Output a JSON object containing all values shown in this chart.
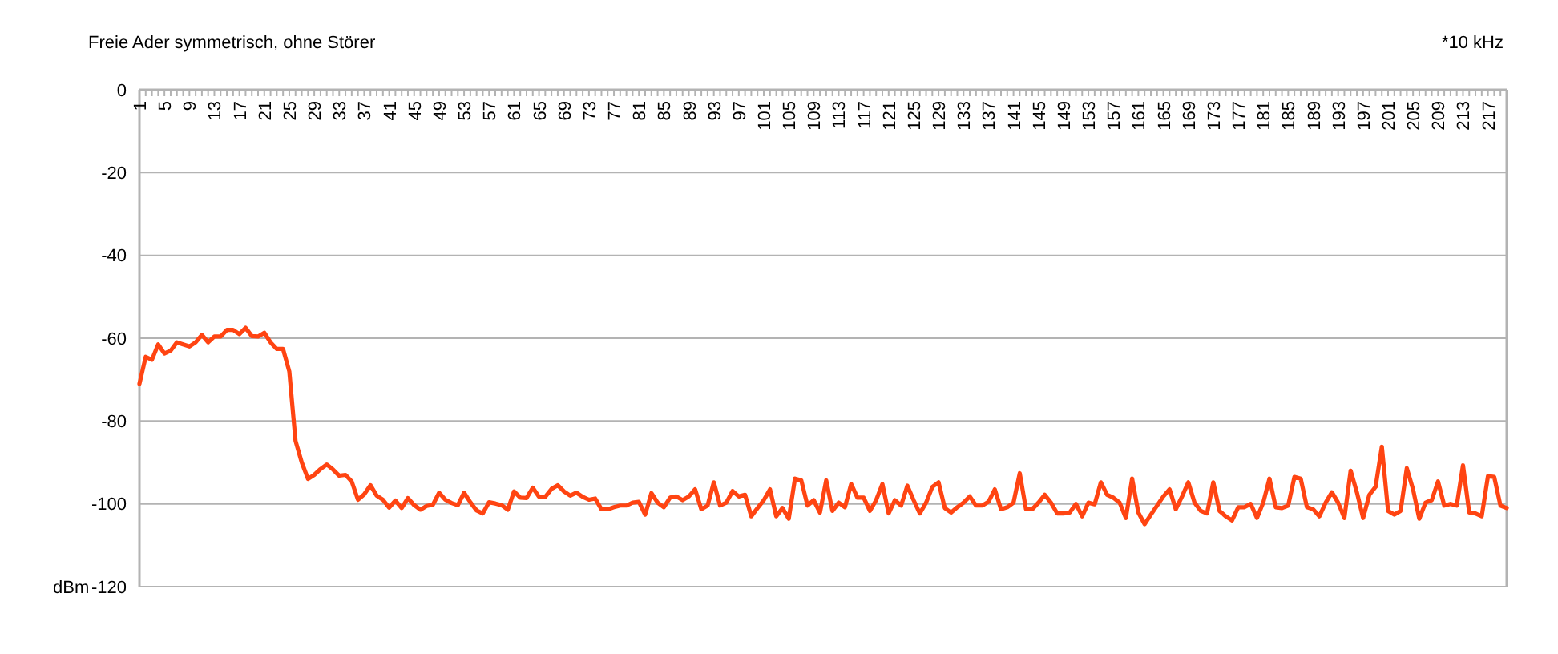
{
  "chart_data": {
    "type": "line",
    "title": "Freie Ader symmetrisch, ohne Störer",
    "xlabel": "*10 kHz",
    "ylabel": "dBm",
    "categories": [
      "1",
      null,
      null,
      null,
      "5",
      null,
      null,
      null,
      "9",
      null,
      null,
      null,
      "13",
      null,
      null,
      null,
      "17",
      null,
      null,
      null,
      "21",
      null,
      null,
      null,
      "25",
      null,
      null,
      null,
      "29",
      null,
      null,
      null,
      "33",
      null,
      null,
      null,
      "37",
      null,
      null,
      null,
      "41",
      null,
      null,
      null,
      "45",
      null,
      null,
      null,
      "49",
      null,
      null,
      null,
      "53",
      null,
      null,
      null,
      "57",
      null,
      null,
      null,
      "61",
      null,
      null,
      null,
      "65",
      null,
      null,
      null,
      "69",
      null,
      null,
      null,
      "73",
      null,
      null,
      null,
      "77",
      null,
      null,
      null,
      "81",
      null,
      null,
      null,
      "85",
      null,
      null,
      null,
      "89",
      null,
      null,
      null,
      "93",
      null,
      null,
      null,
      "97",
      null,
      null,
      null,
      "101",
      null,
      null,
      null,
      "105",
      null,
      null,
      null,
      "109",
      null,
      null,
      null,
      "113",
      null,
      null,
      null,
      "117",
      null,
      null,
      null,
      "121",
      null,
      null,
      null,
      "125",
      null,
      null,
      null,
      "129",
      null,
      null,
      null,
      "133",
      null,
      null,
      null,
      "137",
      null,
      null,
      null,
      "141",
      null,
      null,
      null,
      "145",
      null,
      null,
      null,
      "149",
      null,
      null,
      null,
      "153",
      null,
      null,
      null,
      "157",
      null,
      null,
      null,
      "161",
      null,
      null,
      null,
      "165",
      null,
      null,
      null,
      "169",
      null,
      null,
      null,
      "173",
      null,
      null,
      null,
      "177",
      null,
      null,
      null,
      "181",
      null,
      null,
      null,
      "185",
      null,
      null,
      null,
      "189",
      null,
      null,
      null,
      "193",
      null,
      null,
      null,
      "197",
      null,
      null,
      null,
      "201",
      null,
      null,
      null,
      "205",
      null,
      null,
      null,
      "209",
      null,
      null,
      null,
      "213",
      null,
      null,
      null,
      "217",
      null,
      null,
      null
    ],
    "series": [
      {
        "color": "#ff4412",
        "values": [
          -71,
          -64.5,
          -65.2,
          -61.5,
          -63.7,
          -63,
          -61,
          -61.5,
          -62,
          -61,
          -59.2,
          -61,
          -59.6,
          -59.6,
          -58,
          -58,
          -59,
          -57.5,
          -59.5,
          -59.6,
          -58.7,
          -61,
          -62.6,
          -62.6,
          -68,
          -84.8,
          -90,
          -94,
          -93,
          -91.6,
          -90.5,
          -91.7,
          -93.2,
          -93,
          -94.6,
          -99,
          -97.7,
          -95.5,
          -98,
          -99,
          -100.9,
          -99.2,
          -101,
          -98.6,
          -100.3,
          -101.4,
          -100.5,
          -100.2,
          -97.3,
          -99,
          -99.8,
          -100.3,
          -97.3,
          -99.6,
          -101.6,
          -102.3,
          -99.6,
          -99.9,
          -100.3,
          -101.4,
          -97,
          -98.5,
          -98.6,
          -96.1,
          -98.3,
          -98.3,
          -96.4,
          -95.5,
          -97,
          -98,
          -97.3,
          -98.3,
          -99,
          -98.7,
          -101.3,
          -101.3,
          -100.8,
          -100.4,
          -100.4,
          -99.7,
          -99.5,
          -102.6,
          -97.4,
          -99.7,
          -100.8,
          -98.5,
          -98.2,
          -99.1,
          -98.2,
          -96.5,
          -101.3,
          -100.4,
          -94.8,
          -100.4,
          -99.7,
          -96.9,
          -98.2,
          -97.8,
          -103,
          -101,
          -99.1,
          -96.5,
          -103,
          -101,
          -103.6,
          -93.9,
          -94.3,
          -100.4,
          -99.1,
          -102.1,
          -94.3,
          -101.7,
          -99.7,
          -100.8,
          -95.2,
          -98.5,
          -98.5,
          -101.7,
          -99.1,
          -95.2,
          -102.3,
          -99.1,
          -100.4,
          -95.6,
          -99.1,
          -102.3,
          -99.7,
          -95.9,
          -94.8,
          -101,
          -102.1,
          -100.8,
          -99.7,
          -98.2,
          -100.4,
          -100.4,
          -99.5,
          -96.5,
          -101.3,
          -100.8,
          -99.7,
          -92.6,
          -101.3,
          -101.3,
          -99.7,
          -97.8,
          -99.7,
          -102.3,
          -102.3,
          -102.1,
          -100,
          -103,
          -99.7,
          -100.1,
          -94.8,
          -97.8,
          -98.5,
          -99.7,
          -103.4,
          -93.9,
          -102.1,
          -104.9,
          -102.6,
          -100.4,
          -98.2,
          -96.5,
          -101.3,
          -98.2,
          -94.8,
          -99.7,
          -101.7,
          -102.3,
          -94.8,
          -101.7,
          -103,
          -104,
          -100.8,
          -100.8,
          -100,
          -103.4,
          -99.7,
          -93.9,
          -100.8,
          -101,
          -100.4,
          -93.5,
          -93.9,
          -100.8,
          -101.3,
          -103,
          -99.7,
          -97.2,
          -99.7,
          -103.4,
          -92,
          -97.2,
          -103.4,
          -97.8,
          -95.9,
          -86.2,
          -101.7,
          -102.6,
          -101.7,
          -91.4,
          -96.5,
          -103.6,
          -99.7,
          -99.1,
          -94.6,
          -100.4,
          -100,
          -100.4,
          -90.7,
          -102.1,
          -102.3,
          -103,
          -93.3,
          -93.5,
          -100.4,
          -101
        ]
      }
    ],
    "ylim": [
      -120,
      0
    ],
    "yticks": [
      0,
      -20,
      -40,
      -60,
      -80,
      -100,
      -120
    ],
    "grid": "y",
    "marker": "none",
    "line_style": "solid"
  }
}
